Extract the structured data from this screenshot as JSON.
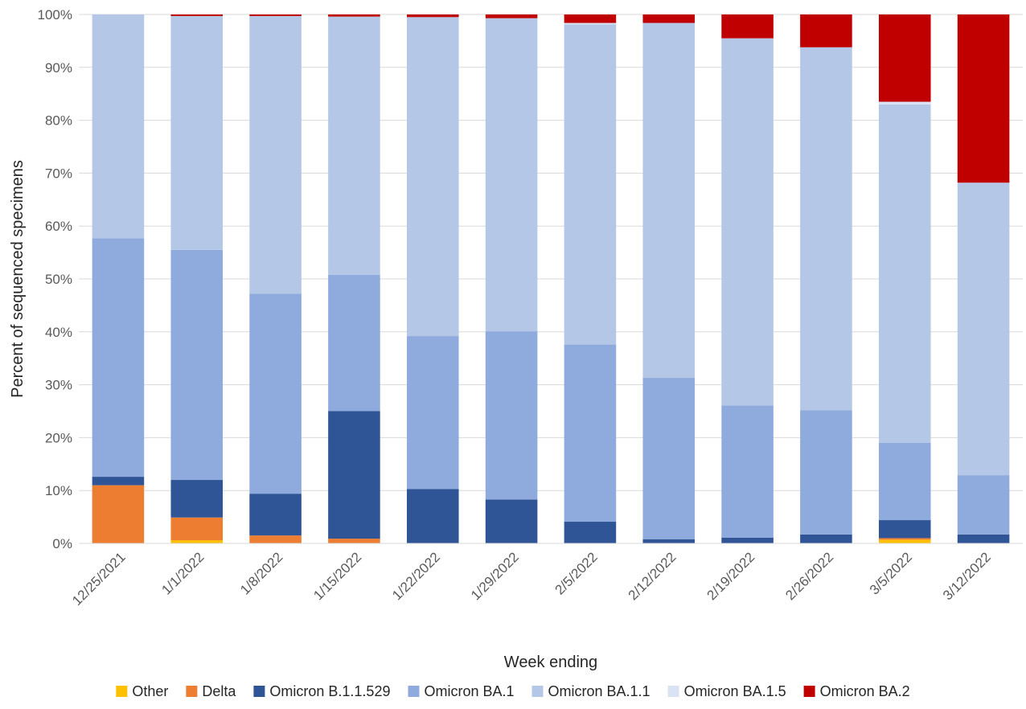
{
  "chart_data": {
    "type": "bar",
    "stacked": true,
    "title": "",
    "xlabel": "Week ending",
    "ylabel": "Percent of sequenced specimens",
    "ylim": [
      0,
      100
    ],
    "yticks": [
      "0%",
      "10%",
      "20%",
      "30%",
      "40%",
      "50%",
      "60%",
      "70%",
      "80%",
      "90%",
      "100%"
    ],
    "grid": true,
    "legend_position": "bottom",
    "categories": [
      "12/25/2021",
      "1/1/2022",
      "1/8/2022",
      "1/15/2022",
      "1/22/2022",
      "1/29/2022",
      "2/5/2022",
      "2/12/2022",
      "2/19/2022",
      "2/26/2022",
      "3/5/2022",
      "3/12/2022"
    ],
    "series": [
      {
        "name": "Other",
        "color": "#FFC000",
        "values": [
          0,
          0.6,
          0,
          0,
          0,
          0,
          0,
          0,
          0,
          0,
          0.7,
          0
        ]
      },
      {
        "name": "Delta",
        "color": "#ED7D31",
        "values": [
          11.0,
          4.3,
          1.5,
          0.9,
          0,
          0,
          0,
          0,
          0,
          0,
          0.3,
          0
        ]
      },
      {
        "name": "Omicron B.1.1.529",
        "color": "#2F5597",
        "values": [
          1.6,
          7.1,
          7.9,
          24.1,
          10.3,
          8.3,
          4.1,
          0.8,
          1.1,
          1.7,
          3.4,
          1.7
        ]
      },
      {
        "name": "Omicron BA.1",
        "color": "#8FAADC",
        "values": [
          45.1,
          43.5,
          37.8,
          25.8,
          28.9,
          31.8,
          33.5,
          30.5,
          25.0,
          23.5,
          14.6,
          11.2
        ]
      },
      {
        "name": "Omicron BA.1.1",
        "color": "#B4C7E7",
        "values": [
          42.3,
          44.2,
          52.5,
          48.8,
          60.3,
          59.2,
          60.5,
          67.1,
          69.4,
          68.6,
          64.0,
          55.3
        ]
      },
      {
        "name": "Omicron BA.1.5",
        "color": "#DAE3F3",
        "values": [
          0,
          0,
          0,
          0,
          0,
          0,
          0.3,
          0,
          0,
          0,
          0.5,
          0
        ]
      },
      {
        "name": "Omicron BA.2",
        "color": "#C00000",
        "values": [
          0,
          0.3,
          0.3,
          0.4,
          0.5,
          0.7,
          1.6,
          1.6,
          4.5,
          6.2,
          16.5,
          31.8
        ]
      }
    ]
  }
}
